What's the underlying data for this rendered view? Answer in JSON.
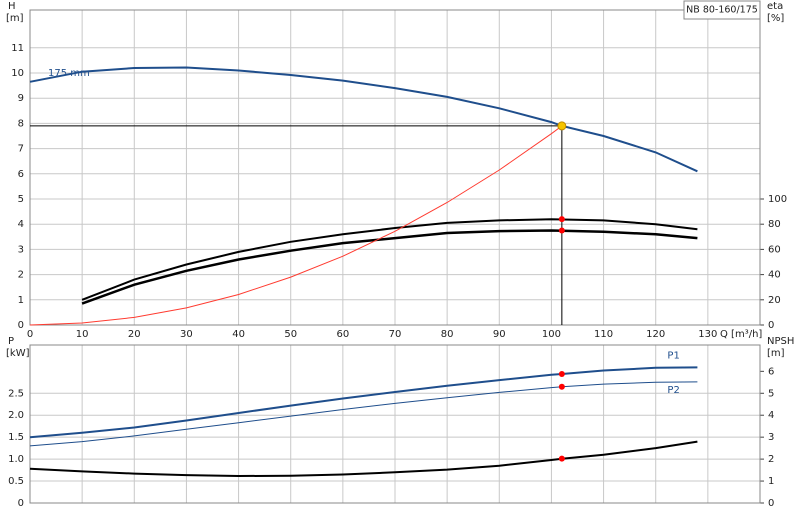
{
  "chart_data": [
    {
      "type": "line",
      "title": "NB 80-160/175",
      "y_label": "H",
      "y_unit": "[m]",
      "y2_label": "eta",
      "y2_unit": "[%]",
      "x_label": "Q [m³/h]",
      "xlim": [
        0,
        140
      ],
      "xticks": [
        0,
        10,
        20,
        30,
        40,
        50,
        60,
        70,
        80,
        90,
        100,
        110,
        120,
        130
      ],
      "ylim": [
        0,
        12.5
      ],
      "yticks": [
        0,
        1,
        2,
        3,
        4,
        5,
        6,
        7,
        8,
        9,
        10,
        11
      ],
      "y2lim": [
        0,
        250
      ],
      "y2ticks": [
        0,
        20,
        40,
        60,
        80,
        100
      ],
      "grid": true,
      "series": [
        {
          "name": "175 mm",
          "color": "#1f4e8c",
          "width": 2,
          "x": [
            0,
            10,
            20,
            30,
            40,
            50,
            60,
            70,
            80,
            90,
            100,
            102,
            110,
            120,
            128
          ],
          "values": [
            9.65,
            10.05,
            10.2,
            10.22,
            10.1,
            9.92,
            9.7,
            9.4,
            9.05,
            8.6,
            8.05,
            7.9,
            7.5,
            6.85,
            6.1
          ]
        },
        {
          "color": "#000000",
          "width": 2,
          "axis": "y2",
          "x": [
            10,
            20,
            30,
            40,
            50,
            60,
            70,
            80,
            90,
            100,
            110,
            120,
            128
          ],
          "values": [
            20,
            36,
            48,
            58,
            66,
            72,
            77,
            81,
            83,
            84,
            83,
            80,
            76
          ]
        },
        {
          "color": "#000000",
          "width": 2.5,
          "axis": "y2",
          "x": [
            10,
            20,
            30,
            40,
            50,
            60,
            70,
            80,
            90,
            100,
            110,
            120,
            128
          ],
          "values": [
            17,
            32,
            43,
            52,
            59,
            65,
            69,
            73,
            74.5,
            75,
            74,
            72,
            69
          ]
        },
        {
          "color": "#ff3b30",
          "width": 1,
          "x": [
            0,
            10,
            20,
            30,
            40,
            50,
            60,
            70,
            80,
            90,
            100,
            102
          ],
          "values": [
            0,
            0.08,
            0.3,
            0.68,
            1.21,
            1.9,
            2.73,
            3.72,
            4.86,
            6.15,
            7.59,
            7.9
          ]
        }
      ],
      "points": [
        {
          "x": 102,
          "y": 7.9,
          "color": "#f5c400",
          "guides": true
        },
        {
          "x": 102,
          "y": 84,
          "axis": "y2",
          "color": "#ff0000"
        },
        {
          "x": 102,
          "y": 75,
          "axis": "y2",
          "color": "#ff0000"
        }
      ]
    },
    {
      "type": "line",
      "y_label": "P",
      "y_unit": "[kW]",
      "y2_label": "NPSH",
      "y2_unit": "[m]",
      "xlim": [
        0,
        140
      ],
      "xgrid": [
        0,
        10,
        20,
        30,
        40,
        50,
        60,
        70,
        80,
        90,
        100,
        110,
        120,
        130
      ],
      "ylim": [
        0,
        3.6
      ],
      "yticks": [
        0,
        0.5,
        {
          "value": 1,
          "label": "1.0"
        },
        1.5,
        {
          "value": 2,
          "label": "2.0"
        },
        2.5
      ],
      "y2lim": [
        0,
        7.2
      ],
      "y2ticks": [
        0,
        1,
        2,
        3,
        4,
        5,
        6
      ],
      "grid": true,
      "series": [
        {
          "name": "P1",
          "color": "#1f4e8c",
          "width": 2,
          "x": [
            0,
            10,
            20,
            30,
            40,
            50,
            60,
            70,
            80,
            90,
            100,
            102,
            110,
            120,
            128
          ],
          "values": [
            1.5,
            1.6,
            1.72,
            1.88,
            2.05,
            2.22,
            2.38,
            2.53,
            2.67,
            2.8,
            2.92,
            2.94,
            3.02,
            3.08,
            3.09
          ]
        },
        {
          "name": "P2",
          "color": "#1f4e8c",
          "width": 1,
          "x": [
            0,
            10,
            20,
            30,
            40,
            50,
            60,
            70,
            80,
            90,
            100,
            102,
            110,
            120,
            128
          ],
          "values": [
            1.3,
            1.4,
            1.53,
            1.68,
            1.83,
            1.98,
            2.13,
            2.27,
            2.4,
            2.52,
            2.63,
            2.65,
            2.71,
            2.75,
            2.76
          ]
        },
        {
          "color": "#000000",
          "width": 2,
          "axis": "y2",
          "x": [
            0,
            10,
            20,
            30,
            40,
            50,
            60,
            70,
            80,
            90,
            100,
            102,
            110,
            120,
            128
          ],
          "values": [
            1.56,
            1.44,
            1.34,
            1.27,
            1.23,
            1.24,
            1.3,
            1.4,
            1.52,
            1.7,
            1.96,
            2.02,
            2.2,
            2.5,
            2.8
          ]
        }
      ],
      "points": [
        {
          "x": 102,
          "y": 2.94,
          "color": "#ff0000"
        },
        {
          "x": 102,
          "y": 2.65,
          "color": "#ff0000"
        },
        {
          "x": 102,
          "y": 2.02,
          "axis": "y2",
          "color": "#ff0000"
        }
      ]
    }
  ]
}
